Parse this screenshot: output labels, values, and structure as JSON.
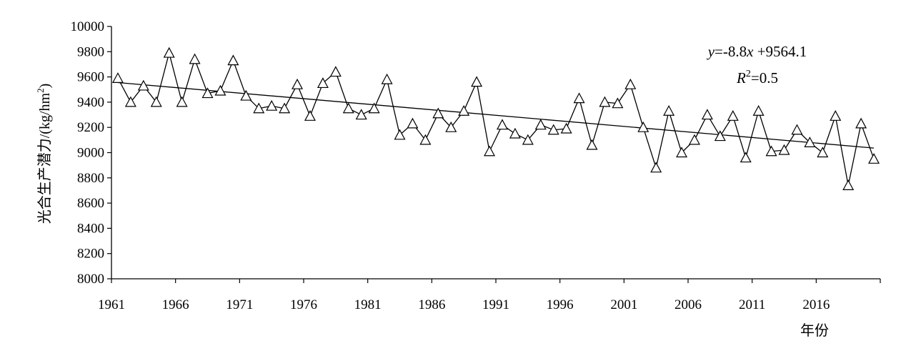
{
  "chart_data": {
    "type": "line",
    "title": "",
    "xlabel": "年份",
    "ylabel": "光合生产潜力/(kg/hm2)",
    "ylabel_parts": {
      "main": "光合生产潜力/(kg/hm",
      "sup": "2",
      "close": ")"
    },
    "ylim": [
      8000,
      10000
    ],
    "y_ticks": [
      8000,
      8200,
      8400,
      8600,
      8800,
      9000,
      9200,
      9400,
      9600,
      9800,
      10000
    ],
    "x_tick_labels": [
      "1961",
      "1966",
      "1971",
      "1976",
      "1981",
      "1986",
      "1991",
      "1996",
      "2001",
      "2006",
      "2011",
      "2016"
    ],
    "x": [
      1961,
      1962,
      1963,
      1964,
      1965,
      1966,
      1967,
      1968,
      1969,
      1970,
      1971,
      1972,
      1973,
      1974,
      1975,
      1976,
      1977,
      1978,
      1979,
      1980,
      1981,
      1982,
      1983,
      1984,
      1985,
      1986,
      1987,
      1988,
      1989,
      1990,
      1991,
      1992,
      1993,
      1994,
      1995,
      1996,
      1997,
      1998,
      1999,
      2000,
      2001,
      2002,
      2003,
      2004,
      2005,
      2006,
      2007,
      2008,
      2009,
      2010,
      2011,
      2012,
      2013,
      2014,
      2015,
      2016,
      2017,
      2018,
      2019,
      2020
    ],
    "series": [
      {
        "marker": "triangle-open",
        "values": [
          9590,
          9400,
          9530,
          9400,
          9790,
          9400,
          9740,
          9470,
          9490,
          9730,
          9450,
          9350,
          9370,
          9350,
          9540,
          9290,
          9550,
          9640,
          9350,
          9300,
          9350,
          9580,
          9140,
          9230,
          9100,
          9310,
          9200,
          9330,
          9560,
          9010,
          9220,
          9150,
          9100,
          9220,
          9180,
          9190,
          9430,
          9060,
          9400,
          9390,
          9540,
          9200,
          8880,
          9330,
          9000,
          9100,
          9300,
          9130,
          9290,
          8960,
          9330,
          9010,
          9020,
          9180,
          9080,
          9000,
          9290,
          8740,
          9230,
          8950
        ]
      }
    ],
    "trendline": {
      "slope": -8.8,
      "intercept": 9564.1,
      "equation_parts": {
        "y": "y",
        "eq": "=-8.8",
        "x": "x",
        "rest": " +9564.1"
      },
      "r2_parts": {
        "R": "R",
        "sup": "2",
        "val": "=0.5"
      }
    },
    "grid": false,
    "legend": "none",
    "colors": {
      "line": "#000000",
      "marker_fill": "#ffffff",
      "axis": "#000000"
    }
  }
}
